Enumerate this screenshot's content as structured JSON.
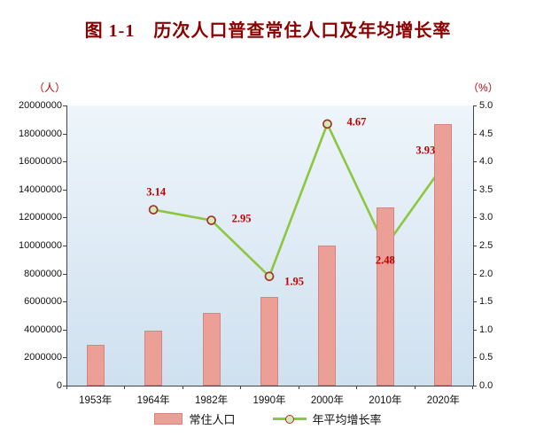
{
  "title": "图 1-1　历次人口普查常住人口及年均增长率",
  "chart_data": {
    "type": "bar",
    "subtype": "combo-bar-line",
    "categories": [
      "1953年",
      "1964年",
      "1982年",
      "1990年",
      "2000年",
      "2010年",
      "2020年"
    ],
    "series": [
      {
        "name": "常住人口",
        "kind": "bar",
        "axis": "left",
        "values": [
          2900000,
          3900000,
          5200000,
          6300000,
          10000000,
          12700000,
          18700000
        ]
      },
      {
        "name": "年平均增长率",
        "kind": "line",
        "axis": "right",
        "values": [
          null,
          3.14,
          2.95,
          1.95,
          4.67,
          2.48,
          3.93
        ],
        "labels": [
          "",
          "3.14",
          "2.95",
          "1.95",
          "4.67",
          "2.48",
          "3.93"
        ]
      }
    ],
    "left_axis": {
      "unit": "（人）",
      "min": 0,
      "max": 20000000,
      "step": 2000000
    },
    "right_axis": {
      "unit": "（%）",
      "min": 0,
      "max": 5,
      "step": 0.5
    },
    "legend": [
      "常住人口",
      "年平均增长率"
    ],
    "grid": "off",
    "legend_position": "bottom",
    "colors": {
      "title": "#8b0000",
      "bar_fill": "#eb9f97",
      "bar_border": "#d4857d",
      "line": "#8dc63f",
      "marker_stroke": "#a0362e",
      "marker_fill": "#d8e8b8",
      "point_label": "#c00000",
      "plot_bg_top": "#eef5fb",
      "plot_bg_bottom": "#cfe0ef"
    }
  }
}
